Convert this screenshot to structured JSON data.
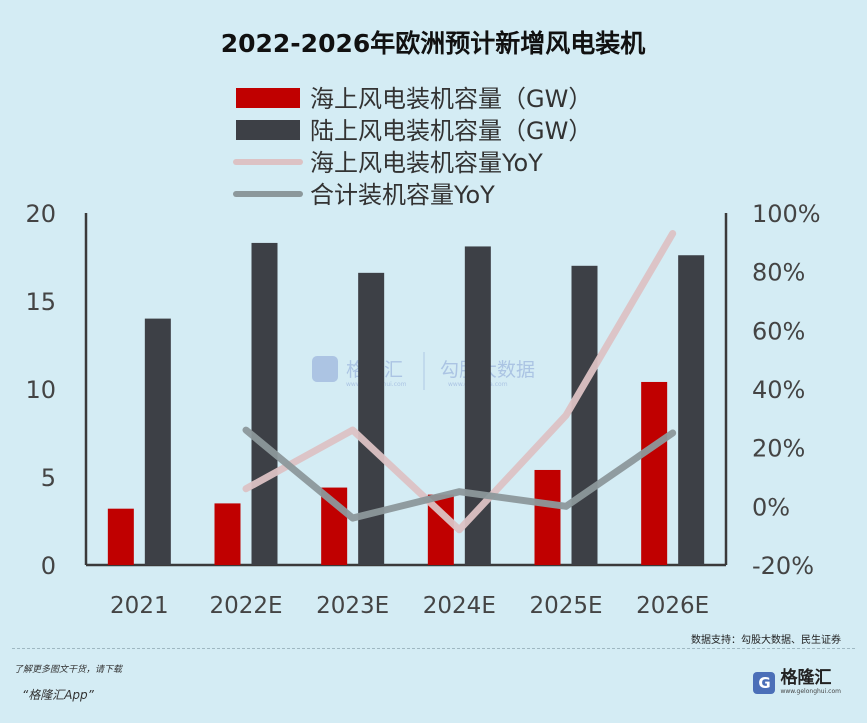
{
  "chart_data": {
    "type": "bar+line",
    "title": "2022-2026年欧洲预计新增风电装机",
    "categories": [
      "2021",
      "2022E",
      "2023E",
      "2024E",
      "2025E",
      "2026E"
    ],
    "series": [
      {
        "name": "海上风电装机容量（GW）",
        "kind": "bar",
        "axis": "left",
        "color": "#c00000",
        "values": [
          3.2,
          3.5,
          4.4,
          4.0,
          5.4,
          10.4
        ]
      },
      {
        "name": "陆上风电装机容量（GW）",
        "kind": "bar",
        "axis": "left",
        "color": "#3d4046",
        "values": [
          14.0,
          18.3,
          16.6,
          18.1,
          17.0,
          17.6
        ]
      },
      {
        "name": "海上风电装机容量YoY",
        "kind": "line",
        "axis": "right",
        "color": "#dcc2c4",
        "values": [
          null,
          6,
          26,
          -8,
          31,
          93
        ]
      },
      {
        "name": "合计装机容量YoY",
        "kind": "line",
        "axis": "right",
        "color": "#8c989b",
        "values": [
          null,
          26,
          -4,
          5,
          0,
          25
        ]
      }
    ],
    "left_axis": {
      "min": 0,
      "max": 20,
      "ticks": [
        0,
        5,
        10,
        15,
        20
      ],
      "tick_labels": [
        "0",
        "5",
        "10",
        "15",
        "20"
      ]
    },
    "right_axis": {
      "min": -20,
      "max": 100,
      "ticks": [
        -20,
        0,
        20,
        40,
        60,
        80,
        100
      ],
      "tick_labels": [
        "-20%",
        "0%",
        "20%",
        "40%",
        "60%",
        "80%",
        "100%"
      ]
    },
    "legend_position": "top-center",
    "grid": false
  },
  "watermarks": {
    "left_name": "格隆汇",
    "left_url": "www.gelonghui.com",
    "right_name": "勾股大数据",
    "right_url": "www.gugudata.com"
  },
  "footer": {
    "source": "数据支持：勾股大数据、民生证券",
    "promo_line": "了解更多图文干货，请下载",
    "app_name": "“格隆汇App”",
    "logo_name": "格隆汇",
    "logo_url": "www.gelonghui.com",
    "logo_glyph": "G"
  }
}
